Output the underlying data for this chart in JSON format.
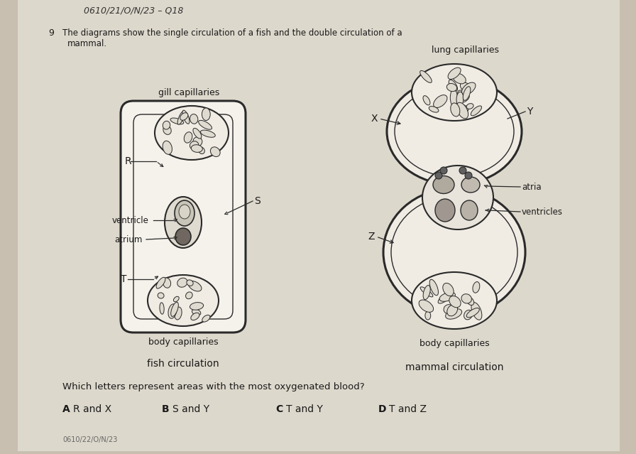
{
  "bg_color": "#c8bfb0",
  "paper_color": "#ddd8cc",
  "title": "0610/21/O/N/23 – Q18",
  "fish_top_label": "gill capillaries",
  "fish_bottom_label": "body capillaries",
  "fish_caption": "fish circulation",
  "fish_R": "R",
  "fish_S": "S",
  "fish_ventricle": "ventricle",
  "fish_atrium": "atrium",
  "fish_T": "T",
  "mammal_top_label": "lung capillaries",
  "mammal_bottom_label": "body capillaries",
  "mammal_caption": "mammal circulation",
  "mammal_X": "X",
  "mammal_Y": "Y",
  "mammal_Z": "Z",
  "mammal_atria": "atria",
  "mammal_ventricles": "ventricles",
  "question": "Which letters represent areas with the most oxygenated blood?",
  "opt_A": "A",
  "opt_A_text": "R and X",
  "opt_B": "B",
  "opt_B_text": "S and Y",
  "opt_C": "C",
  "opt_C_text": "T and Y",
  "opt_D": "D",
  "opt_D_text": "T and Z",
  "line_color": "#2a2a2a",
  "cap_fill": "#e8e4dc",
  "cap_inner": "#c8c0b0",
  "text_color": "#1a1a1a"
}
